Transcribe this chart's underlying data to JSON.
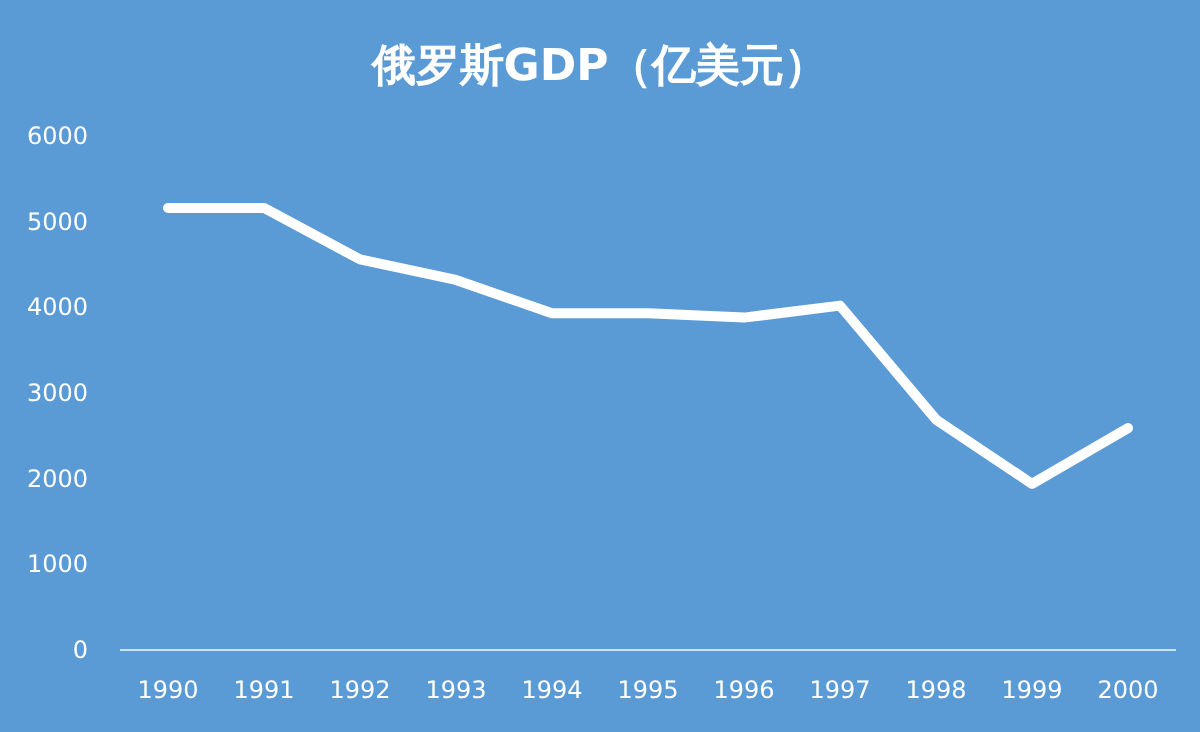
{
  "chart_data": {
    "type": "line",
    "title": "俄罗斯GDP（亿美元）",
    "categories": [
      "1990",
      "1991",
      "1992",
      "1993",
      "1994",
      "1995",
      "1996",
      "1997",
      "1998",
      "1999",
      "2000"
    ],
    "series": [
      {
        "color": "#ffffff",
        "values": [
          5160,
          5160,
          4560,
          4320,
          3930,
          3930,
          3880,
          4020,
          2690,
          1940,
          2590
        ]
      }
    ],
    "ylim": [
      0,
      6000
    ],
    "yticks": [
      0,
      1000,
      2000,
      3000,
      4000,
      5000,
      6000
    ],
    "grid": false,
    "marker": "none",
    "line_style": "solid"
  }
}
